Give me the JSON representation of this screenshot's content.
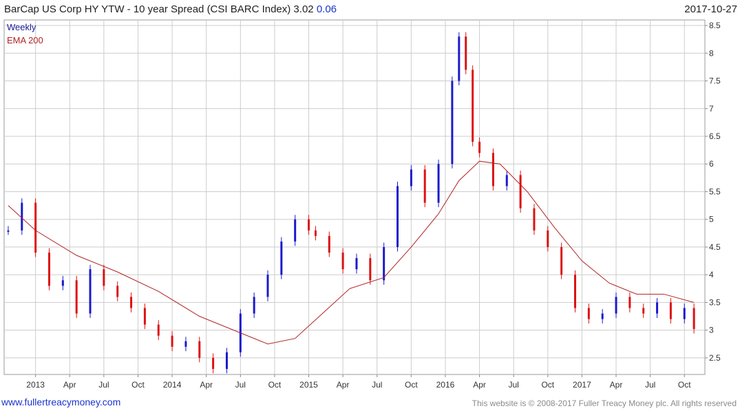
{
  "header": {
    "title": "BarCap US Corp HY YTW - 10 year Spread (CSI BARC Index) 3.02",
    "change": "0.06",
    "date": "2017-10-27"
  },
  "footer": {
    "left": "www.fullertreacymoney.com",
    "right": "This website is © 2008-2017 Fuller Treacy Money plc. All rights reserved"
  },
  "chart_data": {
    "type": "line",
    "title": "BarCap US Corp HY YTW - 10 year Spread (CSI BARC Index)",
    "last_value": 3.02,
    "change": 0.06,
    "frequency": "Weekly",
    "legend": [
      {
        "name": "Weekly",
        "color": "#1a1a99"
      },
      {
        "name": "EMA 200",
        "color": "#b22222"
      }
    ],
    "ylim": [
      2.2,
      8.6
    ],
    "y_ticks": [
      "2.5",
      "3",
      "3.5",
      "4",
      "4.5",
      "5",
      "5.5",
      "6",
      "6.5",
      "7",
      "7.5",
      "8",
      "8.5"
    ],
    "x_ticks": [
      "2013",
      "Apr",
      "Jul",
      "Oct",
      "2014",
      "Apr",
      "Jul",
      "Oct",
      "2015",
      "Apr",
      "Jul",
      "Oct",
      "2016",
      "Apr",
      "Jul",
      "Oct",
      "2017",
      "Apr",
      "Jul",
      "Oct"
    ],
    "grid": true,
    "legend_position": "top-left",
    "colors": {
      "up": "#1a1acc",
      "down": "#dd1111",
      "ema": "#b22222",
      "grid": "#cccccc"
    },
    "series": [
      {
        "name": "Weekly",
        "x": [
          2012.8,
          2012.9,
          2013.0,
          2013.1,
          2013.2,
          2013.3,
          2013.4,
          2013.5,
          2013.6,
          2013.7,
          2013.8,
          2013.9,
          2014.0,
          2014.1,
          2014.2,
          2014.3,
          2014.4,
          2014.5,
          2014.6,
          2014.7,
          2014.8,
          2014.9,
          2015.0,
          2015.05,
          2015.15,
          2015.25,
          2015.35,
          2015.45,
          2015.55,
          2015.65,
          2015.75,
          2015.85,
          2015.95,
          2016.05,
          2016.1,
          2016.15,
          2016.2,
          2016.25,
          2016.35,
          2016.45,
          2016.55,
          2016.65,
          2016.75,
          2016.85,
          2016.95,
          2017.05,
          2017.15,
          2017.25,
          2017.35,
          2017.45,
          2017.55,
          2017.65,
          2017.75,
          2017.82
        ],
        "values": [
          4.8,
          5.3,
          4.4,
          3.8,
          3.9,
          3.3,
          4.1,
          3.8,
          3.6,
          3.4,
          3.1,
          2.9,
          2.7,
          2.8,
          2.5,
          2.3,
          2.6,
          3.3,
          3.6,
          4.0,
          4.6,
          5.0,
          4.8,
          4.7,
          4.4,
          4.1,
          4.3,
          3.9,
          4.5,
          5.6,
          5.9,
          5.3,
          6.0,
          7.5,
          8.3,
          7.7,
          6.4,
          6.2,
          5.6,
          5.8,
          5.2,
          4.8,
          4.5,
          4.0,
          3.4,
          3.2,
          3.3,
          3.6,
          3.4,
          3.3,
          3.5,
          3.2,
          3.4,
          3.02
        ]
      },
      {
        "name": "EMA 200",
        "x": [
          2012.8,
          2013.0,
          2013.3,
          2013.6,
          2013.9,
          2014.2,
          2014.5,
          2014.7,
          2014.9,
          2015.1,
          2015.3,
          2015.55,
          2015.75,
          2015.95,
          2016.1,
          2016.25,
          2016.4,
          2016.6,
          2016.8,
          2017.0,
          2017.2,
          2017.4,
          2017.6,
          2017.82
        ],
        "values": [
          5.25,
          4.8,
          4.35,
          4.05,
          3.7,
          3.25,
          2.95,
          2.75,
          2.85,
          3.3,
          3.75,
          3.95,
          4.5,
          5.1,
          5.7,
          6.05,
          6.0,
          5.5,
          4.85,
          4.25,
          3.85,
          3.65,
          3.65,
          3.5
        ]
      }
    ]
  }
}
